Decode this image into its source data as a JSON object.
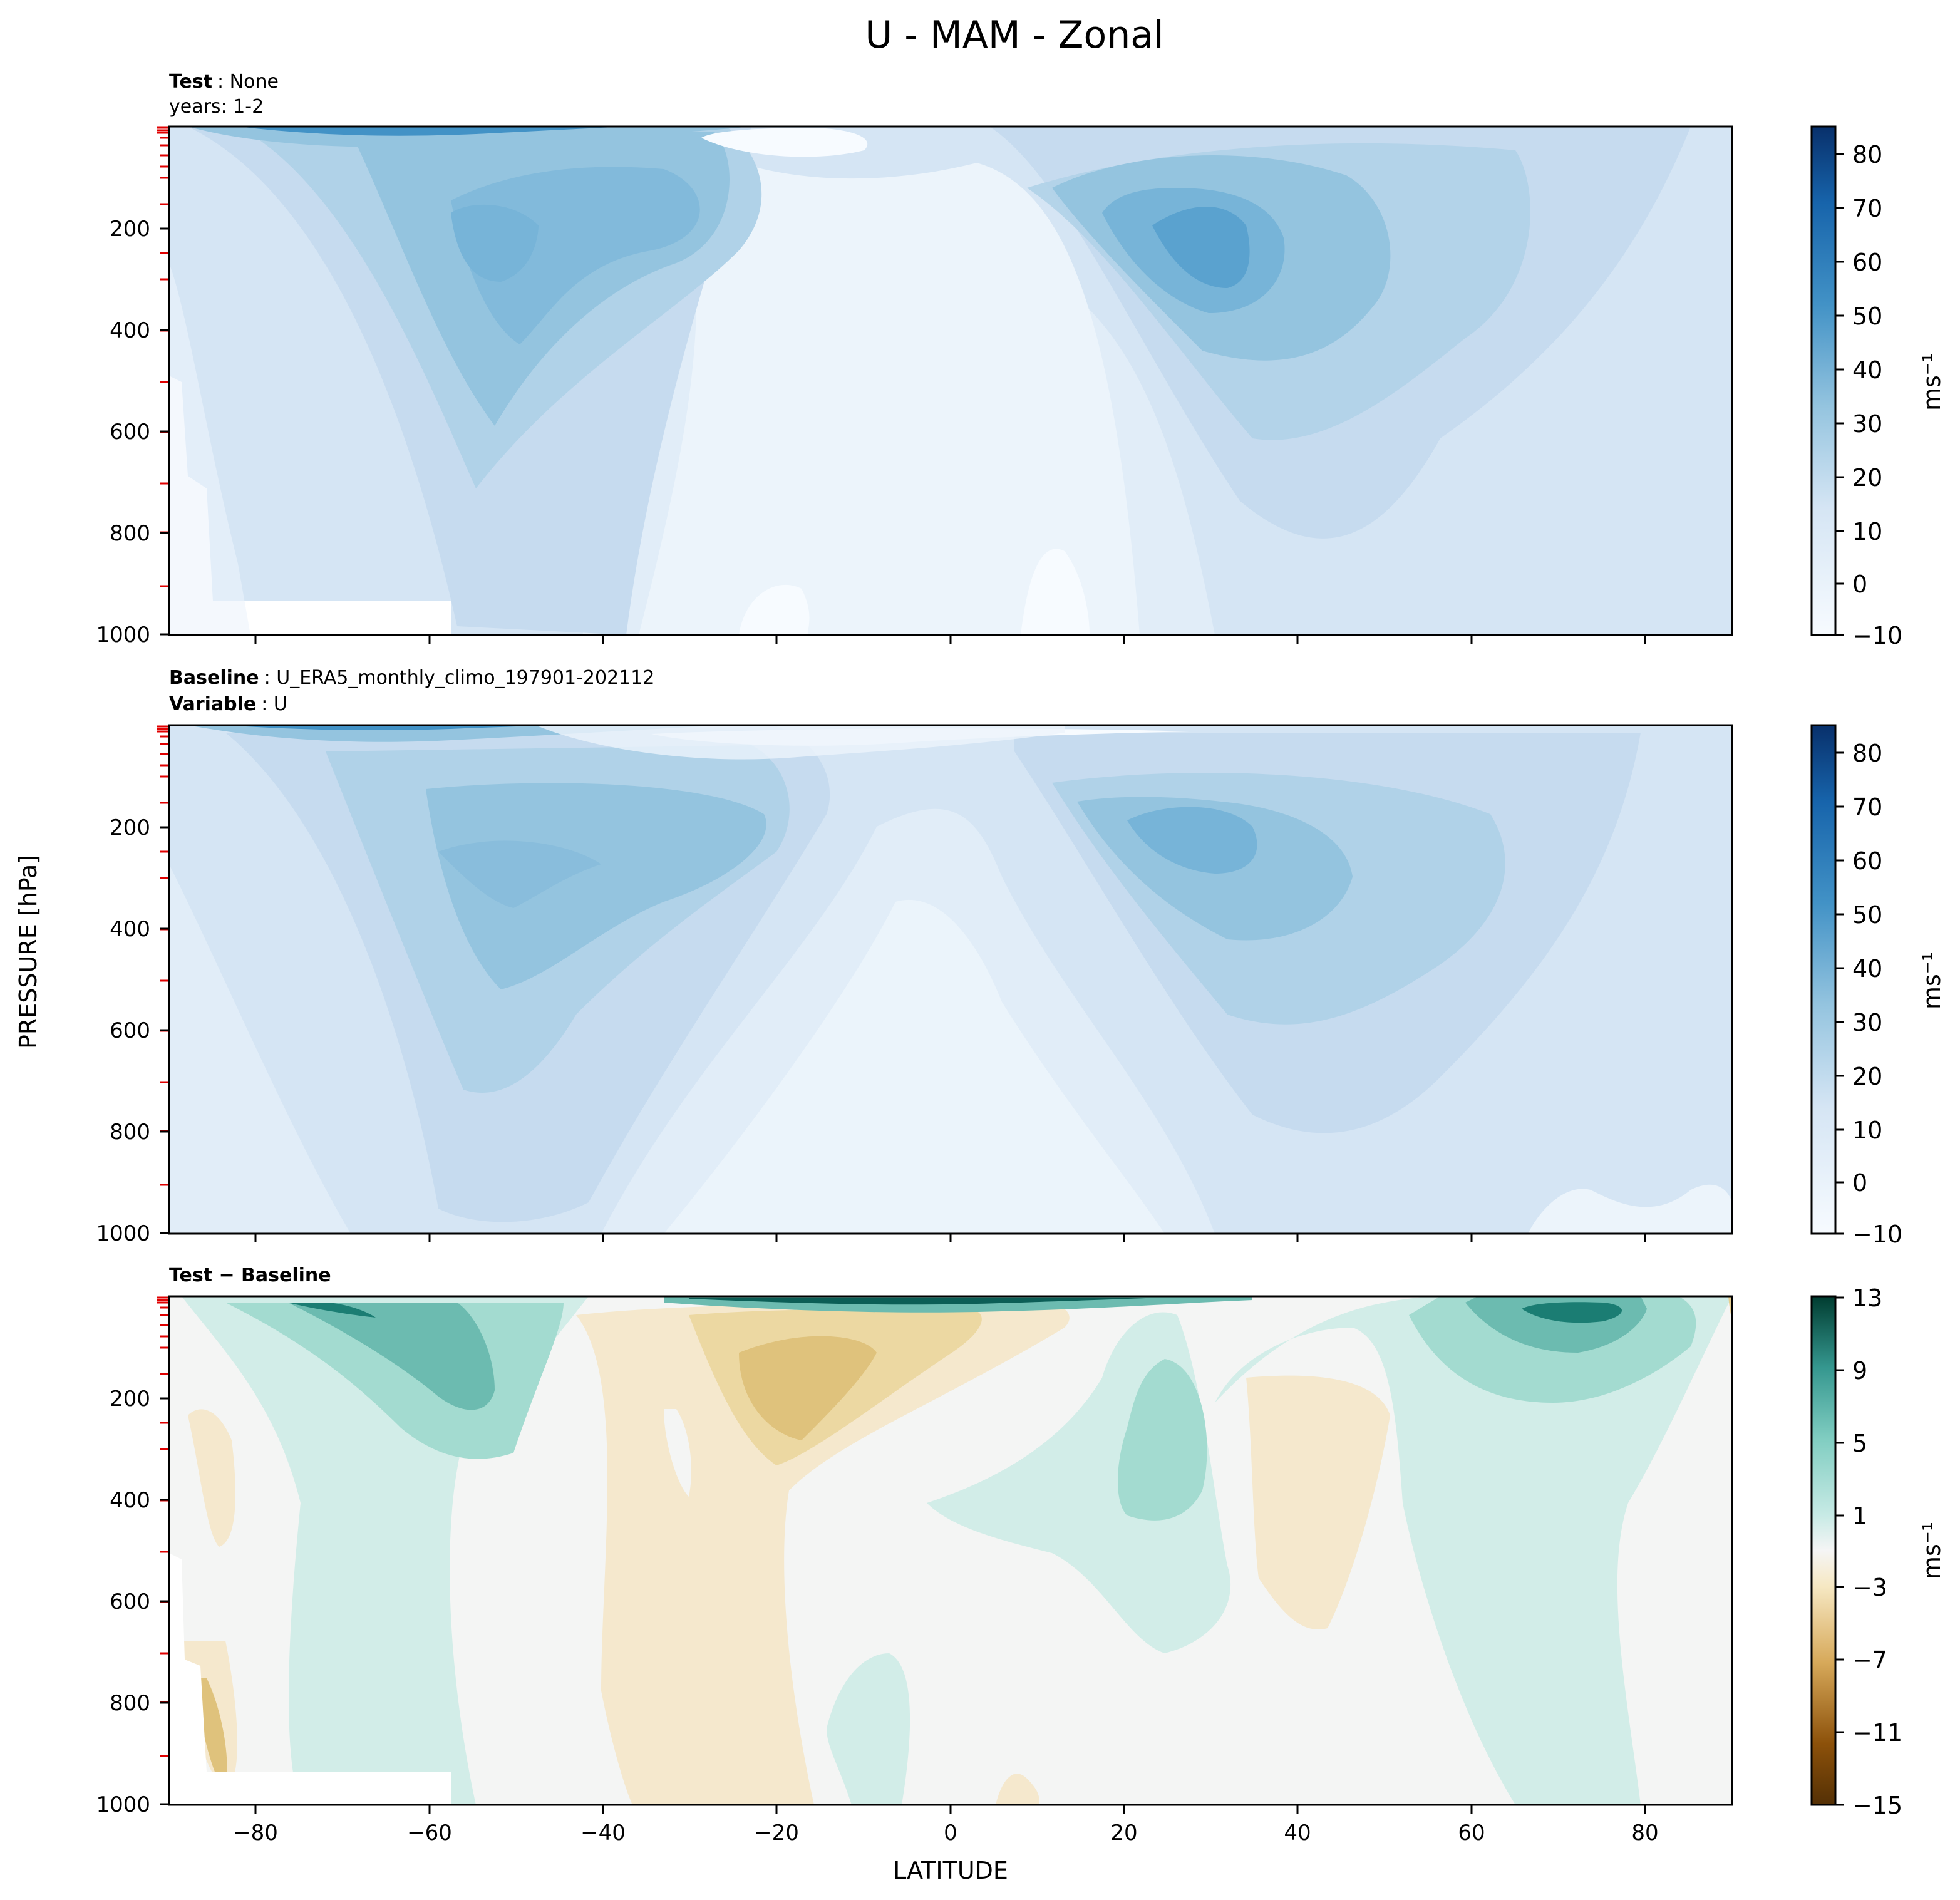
{
  "figure": {
    "title": "U - MAM - Zonal"
  },
  "axes": {
    "xlabel": "LATITUDE",
    "ylabel": "PRESSURE [hPa]",
    "xticks": [
      "−80",
      "−60",
      "−40",
      "−20",
      "0",
      "20",
      "40",
      "60",
      "80"
    ],
    "yticks": [
      "200",
      "400",
      "600",
      "800",
      "1000"
    ]
  },
  "panels": [
    {
      "id": "test",
      "header1_bold": "Test",
      "header1_text": ": None",
      "header2_text": "years: 1-2",
      "colorbar": {
        "label": "ms⁻¹",
        "ticks": [
          "80",
          "70",
          "60",
          "50",
          "40",
          "30",
          "20",
          "10",
          "0",
          "−10"
        ]
      }
    },
    {
      "id": "baseline",
      "header1_bold": "Baseline",
      "header1_text": ": U_ERA5_monthly_climo_197901-202112",
      "header2_bold": "Variable",
      "header2_text": ": U",
      "colorbar": {
        "label": "ms⁻¹",
        "ticks": [
          "80",
          "70",
          "60",
          "50",
          "40",
          "30",
          "20",
          "10",
          "0",
          "−10"
        ]
      }
    },
    {
      "id": "diff",
      "header1_bold": "Test − Baseline",
      "colorbar": {
        "label": "ms⁻¹",
        "ticks": [
          "13",
          "9",
          "5",
          "1",
          "−3",
          "−7",
          "−11",
          "−15"
        ]
      }
    }
  ],
  "colors": {
    "blues": [
      "#f7fbff",
      "#ecf4fb",
      "#e1edf8",
      "#d5e5f4",
      "#c6dbef",
      "#b0d2e8",
      "#94c4df",
      "#77b4d8",
      "#5aa2cf",
      "#3d8dc4",
      "#2879b9",
      "#1764ab",
      "#0b4f95",
      "#08306b"
    ],
    "brbg": [
      "#543005",
      "#8c510a",
      "#b7772a",
      "#d7a95a",
      "#e7cf90",
      "#f6e8c3",
      "#f5f5f5",
      "#c7eae5",
      "#80cdc1",
      "#35978f",
      "#01665e",
      "#003c30"
    ]
  },
  "chart_data": [
    {
      "type": "heatmap",
      "name": "Test",
      "subtitle": "years: 1-2",
      "x": [
        -90,
        90
      ],
      "xlim": [
        -90,
        90
      ],
      "ylim": [
        1000,
        0
      ],
      "levels": [
        -10,
        0,
        5,
        10,
        15,
        20,
        25,
        30,
        35,
        40,
        50,
        60,
        70,
        80
      ],
      "jets": [
        {
          "lat": -50,
          "p": 220,
          "max": 35
        },
        {
          "lat": 28,
          "p": 190,
          "max": 40
        }
      ],
      "unit": "ms⁻¹"
    },
    {
      "type": "heatmap",
      "name": "Baseline",
      "source": "U_ERA5_monthly_climo_197901-202112",
      "variable": "U",
      "xlim": [
        -90,
        90
      ],
      "ylim": [
        1000,
        0
      ],
      "levels": [
        -10,
        0,
        5,
        10,
        15,
        20,
        25,
        30,
        35,
        40,
        50,
        60,
        70,
        80
      ],
      "jets": [
        {
          "lat": -45,
          "p": 230,
          "max": 30
        },
        {
          "lat": 30,
          "p": 200,
          "max": 35
        }
      ],
      "unit": "ms⁻¹"
    },
    {
      "type": "heatmap",
      "name": "Test − Baseline",
      "xlim": [
        -90,
        90
      ],
      "ylim": [
        1000,
        0
      ],
      "levels": [
        -15,
        -13,
        -11,
        -9,
        -7,
        -5,
        -3,
        -1,
        1,
        3,
        5,
        7,
        9,
        11,
        13
      ],
      "features": [
        {
          "lat": -60,
          "p": 150,
          "value": 7,
          "sign": "positive"
        },
        {
          "lat": -20,
          "p": 180,
          "value": -5,
          "sign": "negative"
        },
        {
          "lat": 25,
          "p": 300,
          "value": 4,
          "sign": "positive"
        },
        {
          "lat": 40,
          "p": 400,
          "value": -2,
          "sign": "negative"
        },
        {
          "lat": 70,
          "p": 50,
          "value": 9,
          "sign": "positive"
        }
      ],
      "unit": "ms⁻¹"
    }
  ]
}
